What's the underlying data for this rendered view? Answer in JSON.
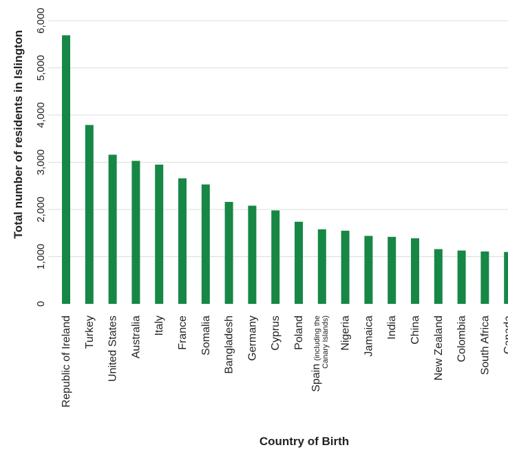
{
  "chart_data": {
    "type": "bar",
    "categories": [
      "Republic of Ireland",
      "Turkey",
      "United States",
      "Australia",
      "Italy",
      "France",
      "Somalia",
      "Bangladesh",
      "Germany",
      "Cyprus",
      "Poland",
      "Spain (including the Canary Islands)",
      "Nigeria",
      "Jamaica",
      "India",
      "China",
      "New Zealand",
      "Colombia",
      "South Africa",
      "Canada"
    ],
    "values": [
      5690,
      3790,
      3160,
      3030,
      2950,
      2660,
      2530,
      2160,
      2080,
      1980,
      1740,
      1580,
      1550,
      1440,
      1420,
      1390,
      1160,
      1130,
      1110,
      1100
    ],
    "title": "",
    "xlabel": "Country of Birth",
    "ylabel": "Total number of residents in Islington",
    "ylim": [
      0,
      6000
    ],
    "yticks": [
      0,
      1000,
      2000,
      3000,
      4000,
      5000,
      6000
    ],
    "ytick_labels": [
      "0",
      "1,000",
      "2,000",
      "3,000",
      "4,000",
      "5,000",
      "6,000"
    ],
    "grid": true,
    "colors": {
      "bar": "#178745",
      "grid": "#dcdcdc",
      "text": "#222222"
    }
  }
}
